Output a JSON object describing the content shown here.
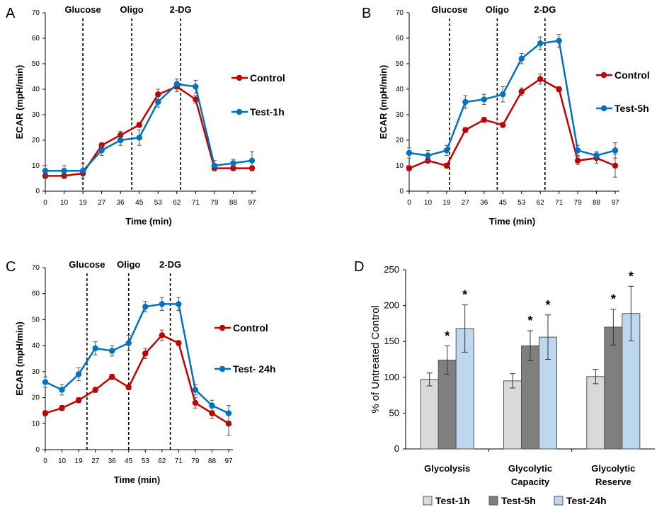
{
  "chart_data": [
    {
      "panel": "A",
      "type": "line",
      "x": [
        "0",
        "10",
        "19",
        "27",
        "36",
        "45",
        "53",
        "62",
        "71",
        "79",
        "88",
        "97"
      ],
      "xlabel": "Time (min)",
      "ylabel": "ECAR (mpH/min)",
      "ylim": [
        0,
        70
      ],
      "yticks": [
        0,
        10,
        20,
        30,
        40,
        50,
        60,
        70
      ],
      "events": [
        {
          "label": "Glucose",
          "at": 2.0
        },
        {
          "label": "Oligo",
          "at": 4.6
        },
        {
          "label": "2-DG",
          "at": 7.2
        }
      ],
      "series": [
        {
          "name": "Control",
          "color": "#c00000",
          "values": [
            6,
            6,
            7,
            18,
            22,
            26,
            38,
            41,
            36,
            9,
            9,
            9
          ],
          "err": [
            1,
            1,
            1,
            1,
            1.5,
            1,
            2,
            2,
            1.5,
            1,
            1,
            1
          ]
        },
        {
          "name": "Test-1h",
          "color": "#0070c0",
          "values": [
            8,
            8,
            8,
            16,
            20,
            21,
            35,
            42,
            41,
            10,
            11,
            12
          ],
          "err": [
            2,
            2,
            3,
            2,
            2,
            3,
            2,
            2,
            2.5,
            2,
            1.5,
            3.5
          ]
        }
      ]
    },
    {
      "panel": "B",
      "type": "line",
      "x": [
        "0",
        "10",
        "19",
        "27",
        "36",
        "45",
        "53",
        "62",
        "71",
        "79",
        "88",
        "97"
      ],
      "xlabel": "Time (min)",
      "ylabel": "ECAR (mpH/min)",
      "ylim": [
        0,
        70
      ],
      "yticks": [
        0,
        10,
        20,
        30,
        40,
        50,
        60,
        70
      ],
      "events": [
        {
          "label": "Glucose",
          "at": 2.15
        },
        {
          "label": "Oligo",
          "at": 4.7
        },
        {
          "label": "2-DG",
          "at": 7.25
        }
      ],
      "series": [
        {
          "name": "Control",
          "color": "#c00000",
          "values": [
            9,
            12,
            10,
            24,
            28,
            26,
            39,
            44,
            40,
            12,
            13,
            10
          ],
          "err": [
            1,
            1,
            1,
            1,
            1,
            1,
            1.5,
            2,
            1,
            1.5,
            2,
            4.5
          ]
        },
        {
          "name": "Test-5h",
          "color": "#0070c0",
          "values": [
            15,
            14,
            16,
            35,
            36,
            38,
            52,
            58,
            59,
            16,
            14,
            16
          ],
          "err": [
            2,
            2,
            2,
            2.5,
            2,
            3,
            2,
            2.5,
            2.5,
            2,
            1.5,
            3
          ]
        }
      ]
    },
    {
      "panel": "C",
      "type": "line",
      "x": [
        "0",
        "10",
        "19",
        "27",
        "36",
        "45",
        "53",
        "62",
        "71",
        "79",
        "88",
        "97"
      ],
      "xlabel": "Time (min)",
      "ylabel": "ECAR (mpH/min)",
      "ylim": [
        0,
        70
      ],
      "yticks": [
        0,
        10,
        20,
        30,
        40,
        50,
        60,
        70
      ],
      "events": [
        {
          "label": "Glucose",
          "at": 2.5
        },
        {
          "label": "Oligo",
          "at": 5.0
        },
        {
          "label": "2-DG",
          "at": 7.5
        }
      ],
      "series": [
        {
          "name": "Control",
          "color": "#c00000",
          "values": [
            14,
            16,
            19,
            23,
            28,
            24,
            37,
            44,
            41,
            18,
            14,
            10
          ],
          "err": [
            1,
            1,
            1,
            1,
            1,
            1,
            2,
            2,
            1,
            2,
            2,
            4.5
          ]
        },
        {
          "name": "Test- 24h",
          "color": "#0070c0",
          "values": [
            26,
            23,
            29,
            39,
            38,
            41,
            55,
            56,
            56,
            23,
            17,
            14
          ],
          "err": [
            2,
            2,
            2.5,
            2.5,
            2,
            3,
            2,
            2.5,
            2.5,
            2,
            2,
            3
          ]
        }
      ]
    },
    {
      "panel": "D",
      "type": "bar",
      "categories": [
        [
          "Glycolysis"
        ],
        [
          "Glycolytic",
          "Capacity"
        ],
        [
          "Glycolytic",
          "Reserve"
        ]
      ],
      "ylabel": "% of Untreated Control",
      "ylim": [
        0,
        250
      ],
      "yticks": [
        0,
        50,
        100,
        150,
        200,
        250
      ],
      "significance_mark": "*",
      "series": [
        {
          "name": "Test-1h",
          "color": "#d9d9d9",
          "values": [
            97,
            95,
            101
          ],
          "err": [
            9,
            10,
            10
          ],
          "significant": [
            false,
            false,
            false
          ]
        },
        {
          "name": "Test-5h",
          "color": "#7f7f7f",
          "values": [
            124,
            144,
            170
          ],
          "err": [
            20,
            21,
            25
          ],
          "significant": [
            true,
            true,
            true
          ]
        },
        {
          "name": "Test-24h",
          "color": "#bdd7ee",
          "values": [
            168,
            156,
            189
          ],
          "err": [
            33,
            31,
            38
          ],
          "significant": [
            true,
            true,
            true
          ]
        }
      ]
    }
  ]
}
